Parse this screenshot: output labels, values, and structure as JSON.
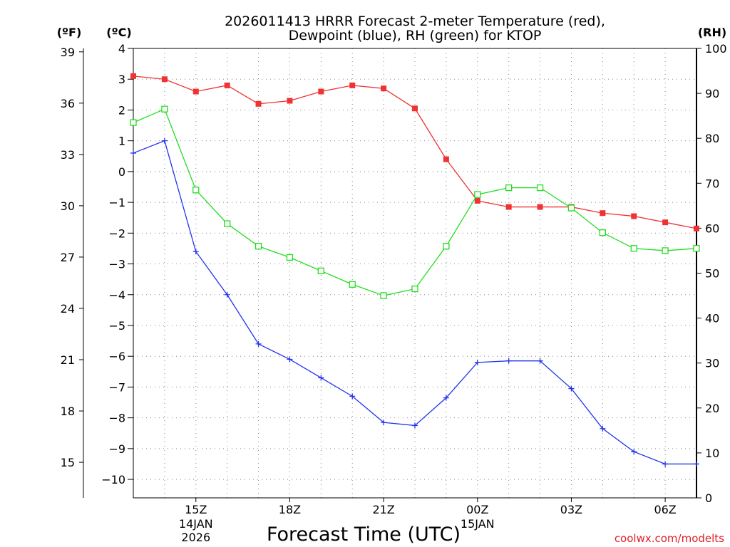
{
  "chart_data": {
    "type": "line",
    "title_line1": "2026011413 HRRR Forecast 2-meter Temperature (red),",
    "title_line2": "Dewpoint (blue), RH (green) for KTOP",
    "xlabel": "Forecast Time (UTC)",
    "credit": "coolwx.com/modelts",
    "units": {
      "fahrenheit": "(ºF)",
      "celsius": "(ºC)",
      "rh": "(RH)"
    },
    "x_hours": [
      13,
      14,
      15,
      16,
      17,
      18,
      19,
      20,
      21,
      22,
      23,
      24,
      25,
      26,
      27,
      28,
      29,
      30,
      31
    ],
    "xlim": [
      13,
      31
    ],
    "x_ticks": [
      {
        "hour": 15,
        "label": "15Z",
        "date": "14JAN",
        "year": "2026"
      },
      {
        "hour": 18,
        "label": "18Z"
      },
      {
        "hour": 21,
        "label": "21Z"
      },
      {
        "hour": 24,
        "label": "00Z",
        "date": "15JAN"
      },
      {
        "hour": 27,
        "label": "03Z"
      },
      {
        "hour": 30,
        "label": "06Z"
      }
    ],
    "celsius_axis": {
      "ylim": [
        -10.6,
        4.0
      ],
      "ticks": [
        4,
        3,
        2,
        1,
        0,
        -1,
        -2,
        -3,
        -4,
        -5,
        -6,
        -7,
        -8,
        -9,
        -10
      ],
      "tick_labels": [
        "4",
        "3",
        "2",
        "1",
        "0",
        "−1",
        "−2",
        "−3",
        "−4",
        "−5",
        "−6",
        "−7",
        "−8",
        "−9",
        "−10"
      ]
    },
    "fahrenheit_axis": {
      "ticks": [
        39,
        36,
        33,
        30,
        27,
        24,
        21,
        18,
        15
      ],
      "tick_labels": [
        "39",
        "36",
        "33",
        "30",
        "27",
        "24",
        "21",
        "18",
        "15"
      ]
    },
    "rh_axis": {
      "ylim": [
        0,
        100
      ],
      "ticks": [
        100,
        90,
        80,
        70,
        60,
        50,
        40,
        30,
        20,
        10,
        0
      ],
      "tick_labels": [
        "100",
        "90",
        "80",
        "70",
        "60",
        "50",
        "40",
        "30",
        "20",
        "10",
        "0"
      ]
    },
    "series": [
      {
        "name": "Temperature",
        "unit": "C",
        "axis": "celsius",
        "color": "#ee3333",
        "marker": "filled-square",
        "values": [
          3.1,
          3.0,
          2.6,
          2.8,
          2.2,
          2.3,
          2.6,
          2.8,
          2.7,
          2.05,
          0.4,
          -0.95,
          -1.15,
          -1.15,
          -1.15,
          -1.35,
          -1.45,
          -1.65,
          -1.85
        ]
      },
      {
        "name": "Dewpoint",
        "unit": "C",
        "axis": "celsius",
        "color": "#2233ee",
        "marker": "plus",
        "values": [
          0.6,
          1.0,
          -2.6,
          -4.0,
          -5.6,
          -6.1,
          -6.7,
          -7.3,
          -8.15,
          -8.25,
          -7.35,
          -6.2,
          -6.15,
          -6.15,
          -7.05,
          -8.35,
          -9.1,
          -9.5,
          -9.5
        ]
      },
      {
        "name": "RH",
        "unit": "%",
        "axis": "rh",
        "color": "#22dd22",
        "marker": "open-square",
        "values": [
          83.5,
          86.5,
          68.5,
          61,
          56,
          53.5,
          50.5,
          47.5,
          45,
          46.5,
          56,
          67.5,
          69,
          69,
          64.5,
          59,
          55.5,
          55,
          55.5
        ]
      }
    ]
  }
}
